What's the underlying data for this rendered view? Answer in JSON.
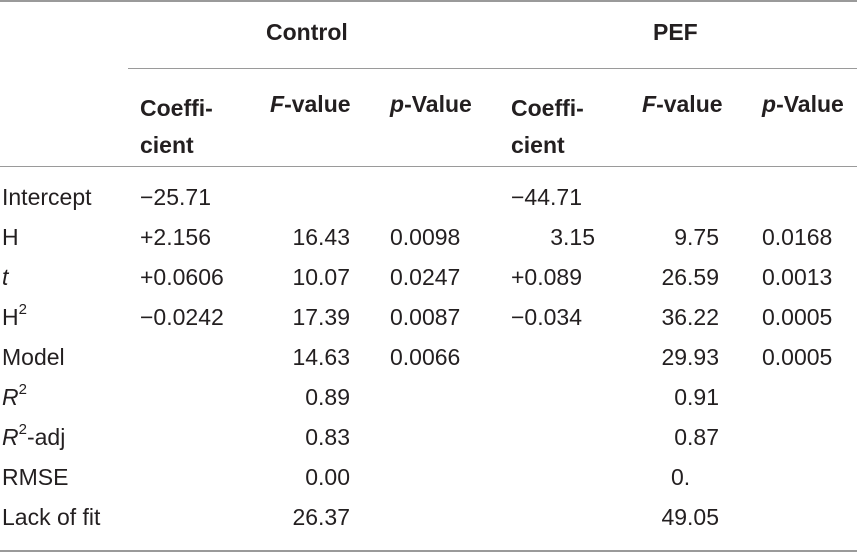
{
  "groups": [
    "Control",
    "PEF"
  ],
  "subheaders": {
    "coef_line1": "Coeffi-",
    "coef_line2": "cient",
    "f_var": "F",
    "f_suffix": "-value",
    "p_var": "p",
    "p_suffix": "-Value"
  },
  "rows": [
    {
      "label": "Intercept",
      "c_coef": "−25.71",
      "c_f": "",
      "c_p": "",
      "p_coef": "−44.71",
      "p_f": "",
      "p_p": ""
    },
    {
      "label": "H",
      "c_coef": "+2.156",
      "c_f": "16.43",
      "c_p": "0.0098",
      "p_coef": "3.15",
      "p_f": "9.75",
      "p_p": "0.0168"
    },
    {
      "label": "t",
      "c_coef": "+0.0606",
      "c_f": "10.07",
      "c_p": "0.0247",
      "p_coef": "+0.089",
      "p_f": "26.59",
      "p_p": "0.0013"
    },
    {
      "label": "H",
      "label_sup": "2",
      "c_coef": "−0.0242",
      "c_f": "17.39",
      "c_p": "0.0087",
      "p_coef": "−0.034",
      "p_f": "36.22",
      "p_p": "0.0005"
    },
    {
      "label": "Model",
      "c_coef": "",
      "c_f": "14.63",
      "c_p": "0.0066",
      "p_coef": "",
      "p_f": "29.93",
      "p_p": "0.0005"
    },
    {
      "label": "R",
      "label_sup": "2",
      "c_coef": "",
      "c_f": "0.89",
      "c_p": "",
      "p_coef": "",
      "p_f": "0.91",
      "p_p": ""
    },
    {
      "label": "R",
      "label_sup": "2",
      "label_suffix": "-adj",
      "c_coef": "",
      "c_f": "0.83",
      "c_p": "",
      "p_coef": "",
      "p_f": "0.87",
      "p_p": ""
    },
    {
      "label": "RMSE",
      "c_coef": "",
      "c_f": "0.00",
      "c_p": "",
      "p_coef": "",
      "p_f": "0.",
      "p_p": ""
    },
    {
      "label": "Lack of fit",
      "c_coef": "",
      "c_f": "26.37",
      "c_p": "",
      "p_coef": "",
      "p_f": "49.05",
      "p_p": ""
    }
  ]
}
